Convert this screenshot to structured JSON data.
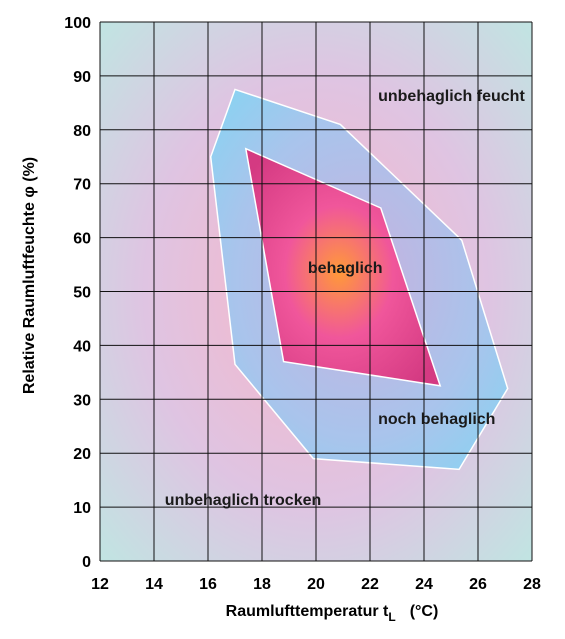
{
  "chart_data": {
    "type": "area",
    "title": "",
    "xlabel": "Raumlufttemperatur t   (°C)",
    "xlabel_parts": [
      "Raumlufttemperatur ",
      "t",
      "L",
      "(°C)"
    ],
    "ylabel": "Relative Raumluftfeuchte φ (%)",
    "xlim": [
      12,
      28
    ],
    "ylim": [
      0,
      100
    ],
    "x_ticks": [
      12,
      14,
      16,
      18,
      20,
      22,
      24,
      26,
      28
    ],
    "y_ticks": [
      0,
      10,
      20,
      30,
      40,
      50,
      60,
      70,
      80,
      90,
      100
    ],
    "grid": true,
    "regions": [
      {
        "name": "noch behaglich",
        "points": [
          [
            17.0,
            87.5
          ],
          [
            20.9,
            81.0
          ],
          [
            25.4,
            59.5
          ],
          [
            27.1,
            32.0
          ],
          [
            25.3,
            17.0
          ],
          [
            19.9,
            19.0
          ],
          [
            17.0,
            36.5
          ],
          [
            16.1,
            75.0
          ]
        ]
      },
      {
        "name": "behaglich",
        "points": [
          [
            17.4,
            76.5
          ],
          [
            22.4,
            65.5
          ],
          [
            24.6,
            32.5
          ],
          [
            18.8,
            37.0
          ]
        ]
      }
    ],
    "labels": [
      {
        "text": "unbehaglich feucht",
        "x": 22.3,
        "y": 86.5
      },
      {
        "text": "behaglich",
        "x": 19.7,
        "y": 54.5
      },
      {
        "text": "noch behaglich",
        "x": 22.3,
        "y": 26.5
      },
      {
        "text": "unbehaglich trocken",
        "x": 14.4,
        "y": 11.5
      }
    ],
    "colors": {
      "background_center": "#f7b6c8",
      "background_edge": "#bfe6e2",
      "noch_behaglich_fill": "#86d4f2",
      "behaglich_center": "#ff9a38",
      "behaglich_edge": "#d43a82",
      "outline": "#ffffff",
      "grid": "#111111"
    }
  }
}
